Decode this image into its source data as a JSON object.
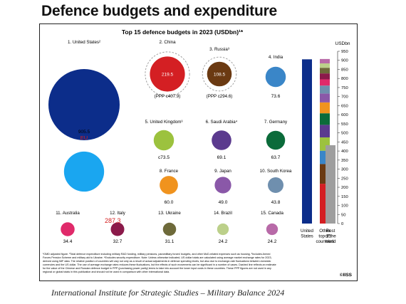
{
  "page": {
    "title": "Defence budgets and expenditure",
    "source": "International Institute for Strategic Studies – Military Balance 2024",
    "copyright": "©IISS"
  },
  "chart_data": [
    {
      "type": "bubble",
      "title": "Top 15 defence budgets in 2023 (USDbn)¹*",
      "items": [
        {
          "rank": "1. United States²",
          "value": "905.5",
          "color": "#0c2d8a"
        },
        {
          "rank": "2. China",
          "value": "219.5",
          "color": "#d41f23",
          "ppp": "(PPP c407.9)",
          "dashed": true
        },
        {
          "rank": "3. Russia³",
          "value": "108.5",
          "color": "#6b3a12",
          "ppp": "(PPP c294.6)",
          "dashed": true
        },
        {
          "rank": "4. India",
          "value": "73.6",
          "color": "#3a86c8"
        },
        {
          "rank": "5. United Kingdom³",
          "value": "c73.5",
          "color": "#9cc23e"
        },
        {
          "rank": "6. Saudi Arabia⁴",
          "value": "69.1",
          "color": "#5b3a8e"
        },
        {
          "rank": "7. Germany",
          "value": "63.7",
          "color": "#0b6b3a"
        },
        {
          "rank": "8. France",
          "value": "60.0",
          "color": "#f0931e"
        },
        {
          "rank": "9. Japan",
          "value": "49.0",
          "color": "#8a58a8"
        },
        {
          "rank": "10. South Korea",
          "value": "43.8",
          "color": "#6f8fae"
        },
        {
          "rank": "11. Australia",
          "value": "34.4",
          "color": "#e02a6a"
        },
        {
          "rank": "12. Italy",
          "value": "32.7",
          "color": "#8b1a4a"
        },
        {
          "rank": "13. Ukraine",
          "value": "31.1",
          "color": "#6e6a3a"
        },
        {
          "rank": "14. Brazil",
          "value": "24.2",
          "color": "#bcd08a"
        },
        {
          "rank": "15. Canada",
          "value": "24.2",
          "color": "#b86aa8"
        }
      ],
      "overlay": [
        {
          "label": "EU",
          "color": "#1aa6f0"
        },
        {
          "label": "287,3",
          "color": "#d42020"
        }
      ]
    },
    {
      "type": "stacked-bar",
      "unit": "USDbn",
      "ylim": [
        0,
        950
      ],
      "ticks": [
        0,
        50,
        100,
        150,
        200,
        250,
        300,
        350,
        400,
        450,
        500,
        550,
        600,
        650,
        700,
        750,
        800,
        850,
        900,
        950
      ],
      "bars": [
        {
          "label": [
            "United",
            "States"
          ],
          "segments": [
            {
              "value": 905.5,
              "color": "#0c2d8a"
            }
          ]
        },
        {
          "label": [
            "Other",
            "top 15",
            "countries"
          ],
          "segments": [
            {
              "value": 219.5,
              "color": "#d41f23"
            },
            {
              "value": 108.5,
              "color": "#6b3a12"
            },
            {
              "value": 73.6,
              "color": "#3a86c8"
            },
            {
              "value": 73.5,
              "color": "#9cc23e"
            },
            {
              "value": 69.1,
              "color": "#5b3a8e"
            },
            {
              "value": 63.7,
              "color": "#0b6b3a"
            },
            {
              "value": 60.0,
              "color": "#f0931e"
            },
            {
              "value": 49.0,
              "color": "#8a58a8"
            },
            {
              "value": 43.8,
              "color": "#6f8fae"
            },
            {
              "value": 34.4,
              "color": "#e02a6a"
            },
            {
              "value": 32.7,
              "color": "#8b1a4a"
            },
            {
              "value": 31.1,
              "color": "#6e6a3a"
            },
            {
              "value": 24.2,
              "color": "#bcd08a"
            },
            {
              "value": 24.2,
              "color": "#b86aa8"
            }
          ]
        },
        {
          "label": [
            "Rest",
            "of the",
            "world"
          ],
          "segments": [
            {
              "value": 432,
              "color": "#9e9e9e"
            }
          ]
        }
      ]
    }
  ],
  "footnotes": [
    "¹OMD adjusted figure. ²Total defence expenditure including military R&D funding, military pensions, paramilitary forces' budgets, and other MoD-related expenses such as housing. ³Includes Armed",
    "Forces Pension Scheme and military aid to Ukraine. ⁴Excludes security expenditure. Note: Unless otherwise indicated, US dollar totals are calculated using average market exchange rates for 2023,",
    "derived using IMF data. The relative position of countries will vary not only as a result of actual adjustments in defence spending levels, but also due to exchange-rate fluctuations between domestic",
    "currencies and the US dollar. The use of average exchange rates reduces these fluctuations, but the effects of such movements can be significant in a number of cases. Dashed line reflects an estimate",
    "for the value of the Chinese and Russian defence budget in PPP (purchasing power parity) terms to take into account the lower input costs in these countries. These PPP figures are not used in any",
    "regional or global totals in this publication and should not be used in comparison with other international data."
  ]
}
